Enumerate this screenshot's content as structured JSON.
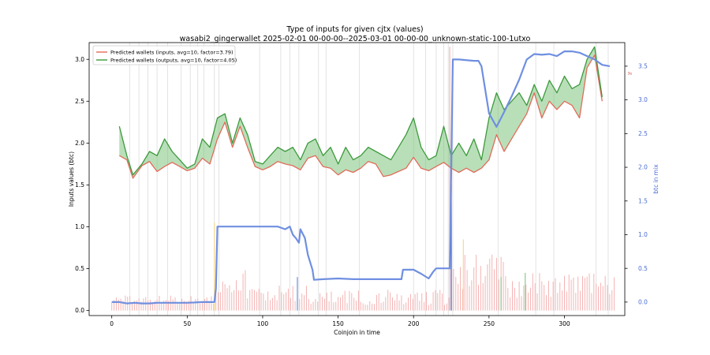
{
  "chart_data": {
    "type": "line",
    "title": "Type of inputs for given cjtx (values)",
    "subtitle": "wasabi2_gingerwallet 2025-02-01 00-00-00--2025-03-01 00-00-00_unknown-static-100-1utxo",
    "xlabel": "Coinjoin in time",
    "ylabel_left": "Inputs values (btc)",
    "ylabel_right": "btc in mix",
    "xlim": [
      -15,
      340
    ],
    "ylim_left": [
      -0.06,
      3.2
    ],
    "ylim_right": [
      -0.2,
      3.85
    ],
    "x_ticks": [
      0,
      50,
      100,
      150,
      200,
      250,
      300
    ],
    "y_ticks_left": [
      0.0,
      0.5,
      1.0,
      1.5,
      2.0,
      2.5,
      3.0
    ],
    "y_ticks_right": [
      0.0,
      0.5,
      1.0,
      1.5,
      2.0,
      2.5,
      3.0,
      3.5
    ],
    "right_axis_red_marker": "3e",
    "vertical_gridlines_x": [
      12,
      18,
      24,
      30,
      37,
      46,
      52,
      57,
      61,
      68,
      71,
      98,
      112,
      118,
      124,
      137,
      142,
      164,
      200,
      208,
      215,
      220,
      223,
      226,
      256,
      281,
      293,
      321,
      329
    ],
    "legend": {
      "placement": "top-left",
      "entries": [
        {
          "label": "Predicted wallets (inputs, avg=10, factor=3.79)",
          "color": "#e06c5a"
        },
        {
          "label": "Predicted wallets (outputs, avg=10, factor=4.05)",
          "color": "#3c9a3c"
        }
      ]
    },
    "series": [
      {
        "name": "Predicted wallets (inputs, avg=10, factor=3.79)",
        "axis": "left",
        "color": "#e06c5a",
        "x": [
          5,
          10,
          14,
          20,
          25,
          30,
          35,
          40,
          45,
          50,
          55,
          60,
          65,
          70,
          75,
          80,
          85,
          90,
          95,
          100,
          105,
          110,
          115,
          120,
          125,
          130,
          135,
          140,
          145,
          150,
          155,
          160,
          165,
          170,
          175,
          180,
          185,
          190,
          195,
          200,
          205,
          210,
          215,
          220,
          225,
          230,
          235,
          240,
          245,
          250,
          255,
          260,
          265,
          270,
          275,
          280,
          285,
          290,
          295,
          300,
          305,
          310,
          315,
          320,
          325
        ],
        "values": [
          1.85,
          1.8,
          1.58,
          1.73,
          1.78,
          1.66,
          1.72,
          1.77,
          1.72,
          1.67,
          1.7,
          1.82,
          1.75,
          2.05,
          2.25,
          1.95,
          2.2,
          1.95,
          1.72,
          1.68,
          1.72,
          1.78,
          1.75,
          1.73,
          1.68,
          1.82,
          1.85,
          1.72,
          1.7,
          1.62,
          1.68,
          1.65,
          1.7,
          1.78,
          1.75,
          1.6,
          1.62,
          1.66,
          1.7,
          1.83,
          1.7,
          1.67,
          1.72,
          1.77,
          1.7,
          1.65,
          1.7,
          1.65,
          1.7,
          1.8,
          2.1,
          1.9,
          2.05,
          2.2,
          2.35,
          2.6,
          2.3,
          2.5,
          2.4,
          2.5,
          2.45,
          2.3,
          2.9,
          3.05,
          2.5
        ]
      },
      {
        "name": "Predicted wallets (outputs, avg=10, factor=4.05)",
        "axis": "left",
        "color": "#3c9a3c",
        "x": [
          5,
          10,
          14,
          20,
          25,
          30,
          35,
          40,
          45,
          50,
          55,
          60,
          65,
          70,
          75,
          80,
          85,
          90,
          95,
          100,
          105,
          110,
          115,
          120,
          125,
          130,
          135,
          140,
          145,
          150,
          155,
          160,
          165,
          170,
          175,
          180,
          185,
          190,
          195,
          200,
          205,
          210,
          215,
          220,
          225,
          230,
          235,
          240,
          245,
          250,
          255,
          260,
          265,
          270,
          275,
          280,
          285,
          290,
          295,
          300,
          305,
          310,
          315,
          320,
          325
        ],
        "values": [
          2.2,
          1.85,
          1.62,
          1.75,
          1.9,
          1.85,
          2.05,
          1.9,
          1.8,
          1.7,
          1.75,
          2.05,
          1.95,
          2.3,
          2.35,
          2.0,
          2.3,
          2.1,
          1.78,
          1.75,
          1.85,
          1.95,
          1.9,
          1.95,
          1.8,
          2.0,
          2.05,
          1.85,
          1.95,
          1.75,
          1.95,
          1.8,
          1.85,
          1.95,
          1.9,
          1.85,
          1.8,
          1.95,
          2.1,
          2.3,
          1.95,
          1.8,
          1.85,
          2.2,
          1.85,
          2.0,
          1.85,
          2.05,
          1.8,
          2.3,
          2.6,
          2.4,
          2.5,
          2.6,
          2.45,
          2.7,
          2.5,
          2.75,
          2.6,
          2.8,
          2.65,
          2.7,
          3.0,
          3.15,
          2.55
        ]
      },
      {
        "name": "",
        "axis": "right",
        "color": "#6f8fe0",
        "x": [
          0,
          5,
          10,
          15,
          20,
          25,
          30,
          40,
          50,
          60,
          68,
          69,
          70,
          80,
          90,
          100,
          110,
          115,
          118,
          120,
          122,
          124,
          125,
          128,
          130,
          133,
          134,
          140,
          150,
          160,
          170,
          180,
          192,
          193,
          200,
          205,
          210,
          213,
          215,
          220,
          224,
          225,
          226,
          230,
          240,
          243,
          245,
          250,
          255,
          260,
          265,
          270,
          275,
          280,
          285,
          290,
          295,
          300,
          305,
          310,
          315,
          320,
          325,
          330
        ],
        "values": [
          0.0,
          0.0,
          -0.02,
          -0.01,
          -0.02,
          -0.02,
          -0.01,
          -0.01,
          -0.01,
          0.0,
          0.0,
          0.2,
          1.12,
          1.12,
          1.12,
          1.12,
          1.12,
          1.08,
          1.12,
          1.0,
          0.95,
          0.88,
          1.08,
          0.95,
          0.7,
          0.48,
          0.33,
          0.34,
          0.35,
          0.34,
          0.34,
          0.34,
          0.34,
          0.48,
          0.48,
          0.42,
          0.35,
          0.45,
          0.5,
          0.5,
          0.5,
          2.0,
          3.6,
          3.6,
          3.58,
          3.58,
          3.5,
          2.8,
          2.6,
          2.82,
          3.05,
          3.3,
          3.6,
          3.68,
          3.67,
          3.68,
          3.65,
          3.72,
          3.72,
          3.7,
          3.65,
          3.6,
          3.52,
          3.5
        ]
      }
    ]
  }
}
